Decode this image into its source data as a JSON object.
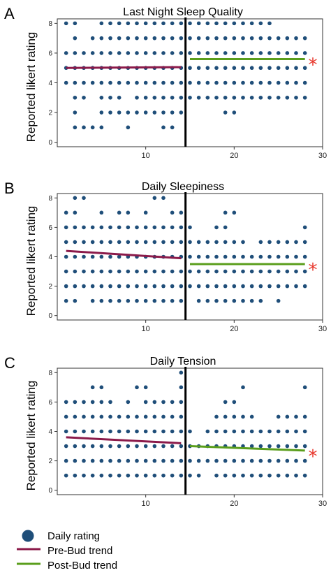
{
  "colors": {
    "dot": "#1f4e79",
    "pre_trend": "#8b1a4a",
    "post_trend": "#5a9e1c",
    "star": "#e8362b",
    "intervention_line": "#000000"
  },
  "legend": [
    {
      "label": "Daily rating",
      "shape": "dot"
    },
    {
      "label": "Pre-Bud trend",
      "shape": "pre-line"
    },
    {
      "label": "Post-Bud trend",
      "shape": "post-line"
    }
  ],
  "chart_data": [
    {
      "type": "scatter",
      "letter": "A",
      "title": "Last Night Sleep Quality",
      "ylabel": "Reported likert rating",
      "xlim": [
        0,
        30
      ],
      "ylim": [
        -0.3,
        8.3
      ],
      "xticks": [
        10,
        20,
        30
      ],
      "yticks": [
        0,
        2,
        4,
        6,
        8
      ],
      "intervention_x": 14.5,
      "significance_marker": "*",
      "columns": [
        [
          4,
          5,
          6,
          8
        ],
        [
          1,
          2,
          3,
          4,
          5,
          6,
          7,
          8
        ],
        [
          1,
          3,
          4,
          5,
          6
        ],
        [
          1,
          4,
          5,
          6,
          7
        ],
        [
          1,
          2,
          3,
          4,
          5,
          6,
          7,
          8
        ],
        [
          2,
          3,
          4,
          5,
          6,
          7,
          8
        ],
        [
          2,
          3,
          4,
          5,
          6,
          7,
          8
        ],
        [
          1,
          2,
          4,
          5,
          6,
          7,
          8
        ],
        [
          2,
          3,
          4,
          5,
          6,
          7,
          8
        ],
        [
          2,
          3,
          4,
          5,
          6,
          7,
          8
        ],
        [
          2,
          3,
          4,
          5,
          6,
          7,
          8
        ],
        [
          1,
          2,
          3,
          4,
          5,
          6,
          7,
          8
        ],
        [
          1,
          2,
          3,
          4,
          5,
          6,
          7,
          8
        ],
        [
          2,
          3,
          4,
          5,
          6,
          7,
          8
        ],
        [
          3,
          4,
          5,
          6,
          7,
          8
        ],
        [
          3,
          4,
          5,
          6,
          7,
          8
        ],
        [
          3,
          4,
          5,
          6,
          7,
          8
        ],
        [
          3,
          4,
          5,
          6,
          7,
          8
        ],
        [
          2,
          3,
          4,
          5,
          6,
          7,
          8
        ],
        [
          2,
          3,
          4,
          5,
          6,
          7,
          8
        ],
        [
          3,
          4,
          5,
          6,
          7,
          8
        ],
        [
          3,
          4,
          5,
          6,
          7,
          8
        ],
        [
          3,
          4,
          5,
          6,
          7,
          8
        ],
        [
          3,
          4,
          5,
          6,
          7,
          8
        ],
        [
          3,
          4,
          5,
          6,
          7
        ],
        [
          3,
          4,
          5,
          6,
          7
        ],
        [
          3,
          4,
          5,
          6,
          7
        ],
        [
          3,
          4,
          5,
          6,
          7
        ]
      ],
      "series": [
        {
          "name": "Pre-Bud trend",
          "x": [
            1,
            14
          ],
          "y": [
            5.0,
            5.05
          ]
        },
        {
          "name": "Post-Bud trend",
          "x": [
            15,
            28
          ],
          "y": [
            5.6,
            5.6
          ]
        }
      ]
    },
    {
      "type": "scatter",
      "letter": "B",
      "title": "Daily Sleepiness",
      "ylabel": "Reported likert rating",
      "xlim": [
        0,
        30
      ],
      "ylim": [
        -0.3,
        8.3
      ],
      "xticks": [
        10,
        20,
        30
      ],
      "yticks": [
        0,
        2,
        4,
        6,
        8
      ],
      "intervention_x": 14.5,
      "significance_marker": "*",
      "columns": [
        [
          1,
          2,
          3,
          4,
          5,
          6,
          7
        ],
        [
          1,
          2,
          3,
          4,
          5,
          6,
          7,
          8
        ],
        [
          2,
          3,
          4,
          5,
          6,
          8
        ],
        [
          1,
          2,
          3,
          4,
          5,
          6
        ],
        [
          1,
          2,
          3,
          4,
          5,
          6,
          7
        ],
        [
          1,
          2,
          3,
          4,
          5,
          6
        ],
        [
          1,
          2,
          3,
          4,
          5,
          6,
          7
        ],
        [
          1,
          2,
          3,
          4,
          5,
          6,
          7
        ],
        [
          1,
          2,
          3,
          4,
          5,
          6
        ],
        [
          1,
          2,
          3,
          4,
          5,
          6,
          7
        ],
        [
          1,
          2,
          3,
          4,
          5,
          6,
          8
        ],
        [
          1,
          2,
          3,
          4,
          5,
          6,
          8
        ],
        [
          1,
          2,
          3,
          4,
          5,
          6,
          7
        ],
        [
          1,
          2,
          3,
          4,
          5,
          6,
          7
        ],
        [
          2,
          3,
          4,
          5,
          6
        ],
        [
          1,
          2,
          3,
          4,
          5
        ],
        [
          1,
          2,
          3,
          4,
          5
        ],
        [
          1,
          2,
          3,
          4,
          5,
          6
        ],
        [
          1,
          2,
          3,
          4,
          5,
          6,
          7
        ],
        [
          1,
          2,
          3,
          4,
          5,
          7
        ],
        [
          1,
          2,
          3,
          4,
          5
        ],
        [
          1,
          2,
          3,
          4
        ],
        [
          1,
          2,
          3,
          4,
          5
        ],
        [
          2,
          3,
          4,
          5
        ],
        [
          1,
          2,
          3,
          4,
          5
        ],
        [
          2,
          3,
          4,
          5
        ],
        [
          2,
          3,
          4,
          5
        ],
        [
          2,
          3,
          4,
          5,
          6
        ]
      ],
      "series": [
        {
          "name": "Pre-Bud trend",
          "x": [
            1,
            14
          ],
          "y": [
            4.4,
            3.9
          ]
        },
        {
          "name": "Post-Bud trend",
          "x": [
            15,
            28
          ],
          "y": [
            3.5,
            3.5
          ]
        }
      ]
    },
    {
      "type": "scatter",
      "letter": "C",
      "title": "Daily Tension",
      "ylabel": "Reported likert rating",
      "xlim": [
        0,
        30
      ],
      "ylim": [
        -0.3,
        8.3
      ],
      "xticks": [
        10,
        20,
        30
      ],
      "yticks": [
        0,
        2,
        4,
        6,
        8
      ],
      "intervention_x": 14.5,
      "significance_marker": "*",
      "columns": [
        [
          1,
          2,
          3,
          4,
          5,
          6
        ],
        [
          1,
          2,
          3,
          4,
          5,
          6
        ],
        [
          1,
          2,
          3,
          4,
          5,
          6
        ],
        [
          1,
          2,
          3,
          4,
          5,
          6,
          7
        ],
        [
          1,
          2,
          3,
          4,
          5,
          6,
          7
        ],
        [
          1,
          2,
          3,
          4,
          5,
          6
        ],
        [
          1,
          2,
          3,
          4,
          5
        ],
        [
          1,
          2,
          3,
          4,
          5,
          6
        ],
        [
          1,
          2,
          3,
          4,
          5,
          7
        ],
        [
          1,
          2,
          3,
          4,
          5,
          6,
          7
        ],
        [
          1,
          2,
          3,
          4,
          5,
          6
        ],
        [
          1,
          2,
          3,
          4,
          5,
          6
        ],
        [
          1,
          2,
          3,
          4,
          5,
          6
        ],
        [
          1,
          2,
          3,
          4,
          5,
          6,
          7,
          8
        ],
        [
          1,
          2,
          3,
          4
        ],
        [
          1,
          2,
          3
        ],
        [
          2,
          3,
          4
        ],
        [
          1,
          2,
          3,
          4,
          5
        ],
        [
          1,
          2,
          3,
          4,
          5,
          6
        ],
        [
          1,
          2,
          3,
          4,
          5,
          6
        ],
        [
          1,
          2,
          3,
          4,
          5,
          7
        ],
        [
          1,
          2,
          3,
          4,
          5
        ],
        [
          1,
          2,
          3,
          4
        ],
        [
          1,
          2,
          3,
          4
        ],
        [
          1,
          2,
          3,
          4,
          5
        ],
        [
          1,
          2,
          3,
          4,
          5
        ],
        [
          1,
          2,
          3,
          4,
          5
        ],
        [
          1,
          2,
          3,
          4,
          5,
          7
        ]
      ],
      "series": [
        {
          "name": "Pre-Bud trend",
          "x": [
            1,
            14
          ],
          "y": [
            3.6,
            3.2
          ]
        },
        {
          "name": "Post-Bud trend",
          "x": [
            15,
            28
          ],
          "y": [
            3.0,
            2.7
          ]
        }
      ]
    }
  ]
}
